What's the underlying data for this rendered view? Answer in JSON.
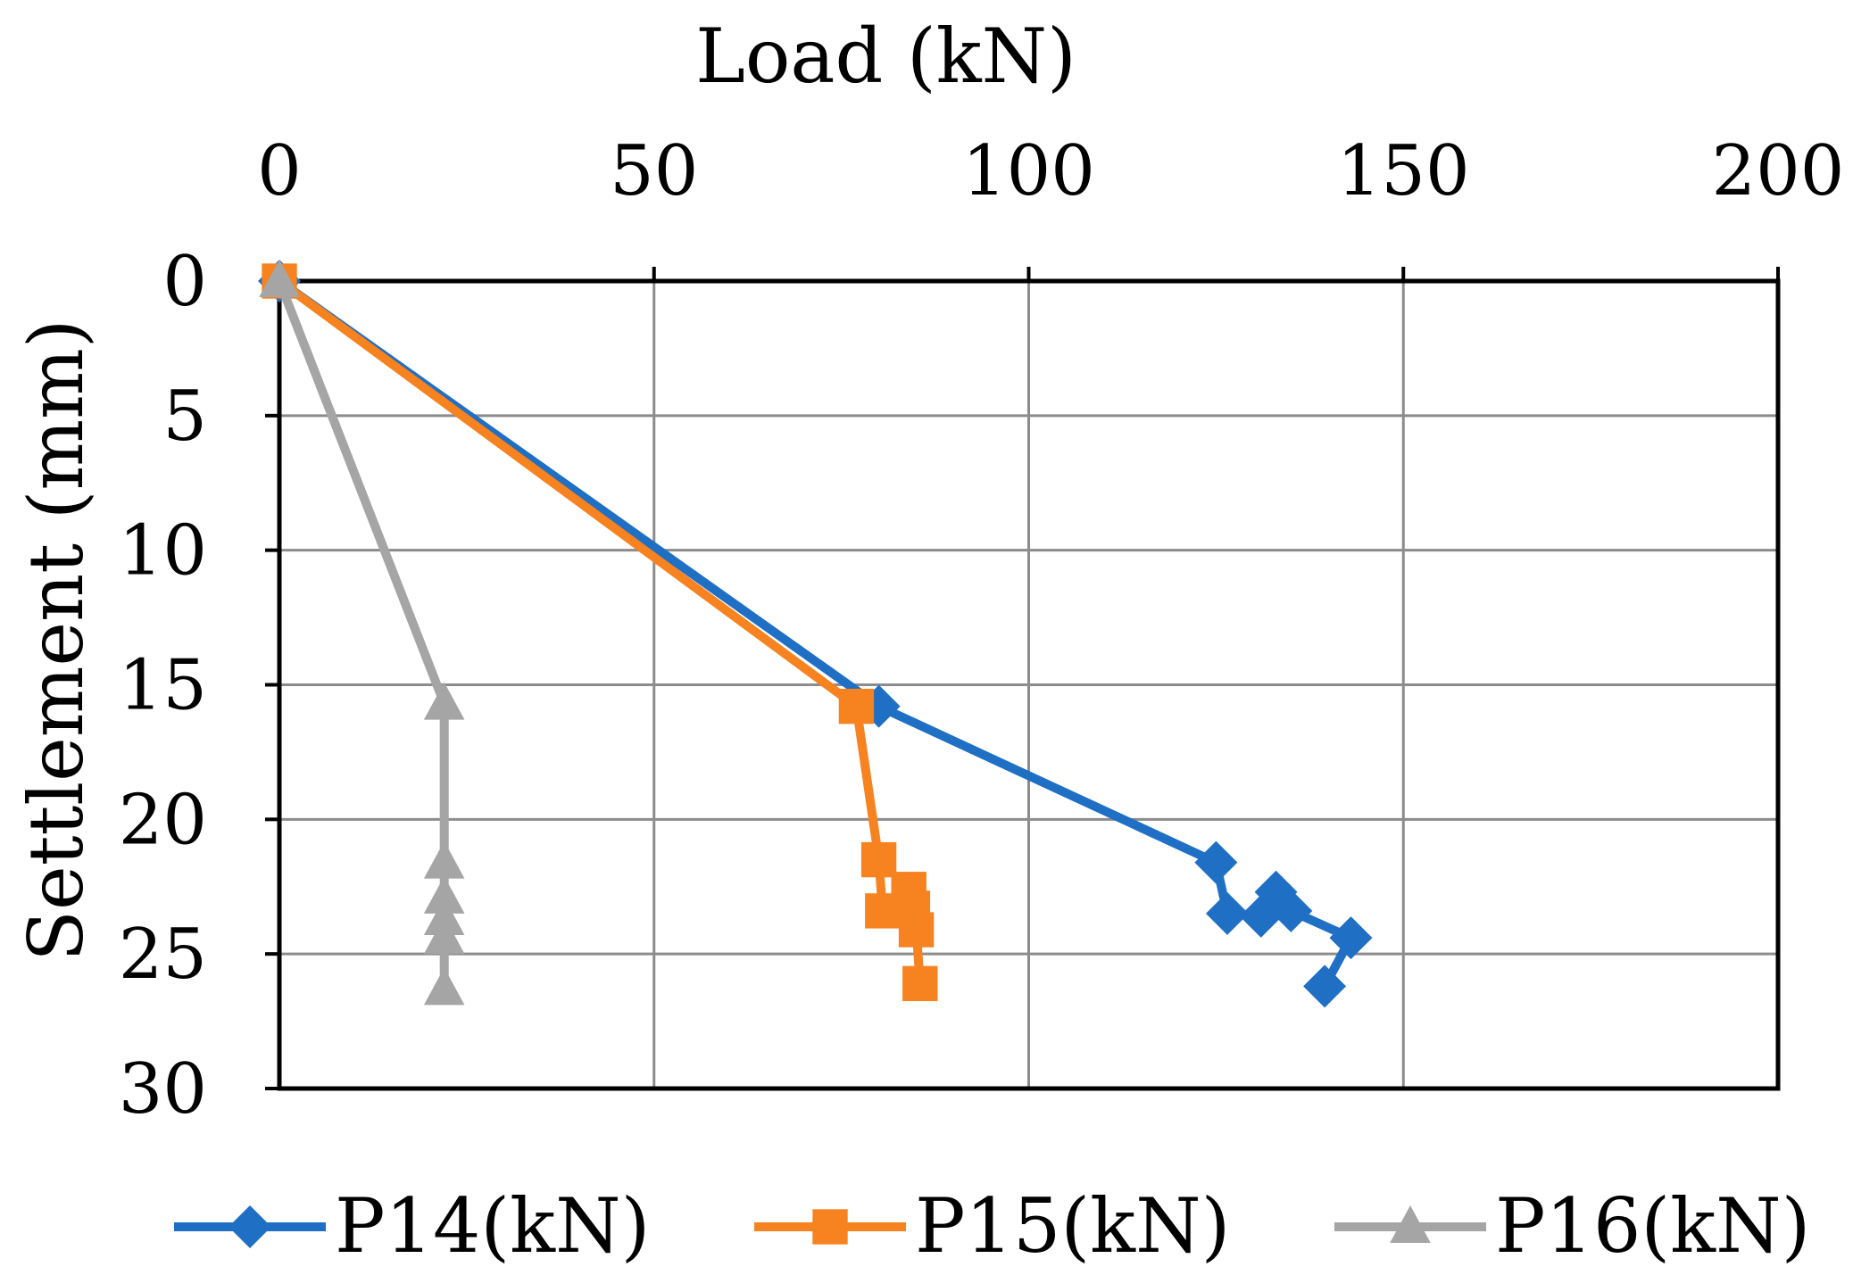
{
  "chart_data": {
    "type": "line",
    "xlabel": "Load (kN)",
    "ylabel": "Settlement (mm)",
    "xlim": [
      0,
      200
    ],
    "ylim": [
      0,
      30
    ],
    "x_axis_position": "top",
    "y_inverted": true,
    "grid": true,
    "legend_position": "bottom",
    "x_ticks": [
      0,
      50,
      100,
      150,
      200
    ],
    "y_ticks": [
      0,
      5,
      10,
      15,
      20,
      25,
      30
    ],
    "series": [
      {
        "name": "P14(kN)",
        "color": "#1f6fc5",
        "marker": "diamond",
        "points": [
          [
            0,
            0
          ],
          [
            80,
            15.8
          ],
          [
            125,
            21.6
          ],
          [
            126.5,
            23.5
          ],
          [
            131,
            23.6
          ],
          [
            133,
            22.7
          ],
          [
            135,
            23.4
          ],
          [
            143,
            24.4
          ],
          [
            139.5,
            26.2
          ]
        ]
      },
      {
        "name": "P15(kN)",
        "color": "#f68220",
        "marker": "square",
        "points": [
          [
            0,
            0
          ],
          [
            77,
            15.8
          ],
          [
            80,
            21.5
          ],
          [
            80.5,
            23.4
          ],
          [
            84,
            22.6
          ],
          [
            84.5,
            23.3
          ],
          [
            85,
            24.1
          ],
          [
            85.5,
            26.1
          ]
        ]
      },
      {
        "name": "P16(kN)",
        "color": "#a5a5a5",
        "marker": "triangle",
        "points": [
          [
            0,
            0
          ],
          [
            22,
            15.7
          ],
          [
            22,
            21.6
          ],
          [
            22,
            22.9
          ],
          [
            22,
            23.7
          ],
          [
            22,
            24.4
          ],
          [
            22,
            26.3
          ]
        ]
      }
    ]
  }
}
